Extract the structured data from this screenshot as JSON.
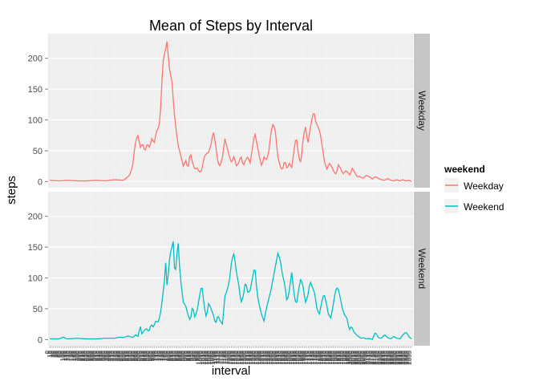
{
  "chart_data": {
    "type": "line",
    "title": "Mean of Steps by Interval",
    "xlabel": "interval",
    "ylabel": "steps",
    "ylim": [
      -10,
      240
    ],
    "yticks": [
      0,
      50,
      100,
      150,
      200
    ],
    "x": {
      "start": 0,
      "end": 2355,
      "step": 5,
      "note_label": "interval"
    },
    "panels": [
      "Weekday",
      "Weekend"
    ],
    "legend": {
      "title": "weekend",
      "position": "right",
      "entries": [
        "Weekday",
        "Weekend"
      ]
    },
    "grid": true,
    "colors": {
      "Weekday": "#F8766D",
      "Weekend": "#00BFC4",
      "panel_bg": "#ebebeb",
      "strip_bg": "#c6c6c6"
    },
    "series": [
      {
        "name": "Weekday",
        "profile": [
          [
            0,
            2
          ],
          [
            60,
            1
          ],
          [
            120,
            2
          ],
          [
            180,
            1
          ],
          [
            240,
            1
          ],
          [
            300,
            2
          ],
          [
            360,
            1
          ],
          [
            420,
            3
          ],
          [
            480,
            2
          ],
          [
            520,
            10
          ],
          [
            540,
            25
          ],
          [
            555,
            60
          ],
          [
            565,
            70
          ],
          [
            575,
            75
          ],
          [
            590,
            55
          ],
          [
            605,
            62
          ],
          [
            620,
            48
          ],
          [
            635,
            62
          ],
          [
            650,
            55
          ],
          [
            665,
            70
          ],
          [
            680,
            62
          ],
          [
            695,
            82
          ],
          [
            705,
            85
          ],
          [
            715,
            95
          ],
          [
            725,
            130
          ],
          [
            735,
            190
          ],
          [
            745,
            205
          ],
          [
            755,
            215
          ],
          [
            765,
            230
          ],
          [
            775,
            190
          ],
          [
            785,
            175
          ],
          [
            795,
            165
          ],
          [
            805,
            130
          ],
          [
            815,
            100
          ],
          [
            825,
            80
          ],
          [
            835,
            60
          ],
          [
            845,
            50
          ],
          [
            855,
            40
          ],
          [
            870,
            25
          ],
          [
            885,
            35
          ],
          [
            900,
            20
          ],
          [
            915,
            48
          ],
          [
            930,
            30
          ],
          [
            945,
            20
          ],
          [
            960,
            22
          ],
          [
            975,
            15
          ],
          [
            990,
            18
          ],
          [
            1005,
            40
          ],
          [
            1020,
            45
          ],
          [
            1035,
            48
          ],
          [
            1050,
            60
          ],
          [
            1065,
            82
          ],
          [
            1080,
            60
          ],
          [
            1095,
            30
          ],
          [
            1110,
            25
          ],
          [
            1125,
            40
          ],
          [
            1140,
            70
          ],
          [
            1155,
            55
          ],
          [
            1170,
            40
          ],
          [
            1185,
            30
          ],
          [
            1200,
            42
          ],
          [
            1215,
            25
          ],
          [
            1230,
            30
          ],
          [
            1245,
            42
          ],
          [
            1260,
            25
          ],
          [
            1275,
            35
          ],
          [
            1290,
            40
          ],
          [
            1305,
            30
          ],
          [
            1320,
            55
          ],
          [
            1335,
            80
          ],
          [
            1350,
            60
          ],
          [
            1365,
            40
          ],
          [
            1380,
            25
          ],
          [
            1395,
            40
          ],
          [
            1410,
            35
          ],
          [
            1425,
            45
          ],
          [
            1440,
            80
          ],
          [
            1455,
            95
          ],
          [
            1470,
            80
          ],
          [
            1485,
            40
          ],
          [
            1500,
            25
          ],
          [
            1515,
            18
          ],
          [
            1530,
            35
          ],
          [
            1545,
            20
          ],
          [
            1560,
            30
          ],
          [
            1575,
            22
          ],
          [
            1590,
            50
          ],
          [
            1605,
            75
          ],
          [
            1620,
            40
          ],
          [
            1635,
            30
          ],
          [
            1650,
            70
          ],
          [
            1665,
            90
          ],
          [
            1680,
            60
          ],
          [
            1695,
            85
          ],
          [
            1710,
            105
          ],
          [
            1720,
            115
          ],
          [
            1730,
            98
          ],
          [
            1745,
            90
          ],
          [
            1760,
            80
          ],
          [
            1775,
            55
          ],
          [
            1790,
            30
          ],
          [
            1805,
            20
          ],
          [
            1820,
            30
          ],
          [
            1835,
            25
          ],
          [
            1850,
            15
          ],
          [
            1865,
            12
          ],
          [
            1880,
            28
          ],
          [
            1895,
            20
          ],
          [
            1910,
            12
          ],
          [
            1925,
            18
          ],
          [
            1940,
            15
          ],
          [
            1955,
            10
          ],
          [
            1970,
            22
          ],
          [
            1985,
            15
          ],
          [
            2000,
            8
          ],
          [
            2020,
            8
          ],
          [
            2040,
            5
          ],
          [
            2060,
            10
          ],
          [
            2080,
            8
          ],
          [
            2100,
            4
          ],
          [
            2120,
            8
          ],
          [
            2140,
            5
          ],
          [
            2160,
            3
          ],
          [
            2180,
            2
          ],
          [
            2200,
            5
          ],
          [
            2220,
            2
          ],
          [
            2240,
            1
          ],
          [
            2260,
            3
          ],
          [
            2280,
            1
          ],
          [
            2300,
            3
          ],
          [
            2320,
            1
          ],
          [
            2340,
            2
          ],
          [
            2355,
            0
          ]
        ]
      },
      {
        "name": "Weekend",
        "profile": [
          [
            0,
            1
          ],
          [
            60,
            1
          ],
          [
            90,
            4
          ],
          [
            110,
            1
          ],
          [
            180,
            2
          ],
          [
            240,
            1
          ],
          [
            300,
            1
          ],
          [
            360,
            2
          ],
          [
            420,
            2
          ],
          [
            460,
            4
          ],
          [
            480,
            3
          ],
          [
            510,
            6
          ],
          [
            540,
            3
          ],
          [
            560,
            8
          ],
          [
            575,
            5
          ],
          [
            590,
            22
          ],
          [
            600,
            8
          ],
          [
            615,
            15
          ],
          [
            630,
            18
          ],
          [
            645,
            12
          ],
          [
            660,
            25
          ],
          [
            675,
            20
          ],
          [
            690,
            30
          ],
          [
            705,
            28
          ],
          [
            720,
            40
          ],
          [
            735,
            70
          ],
          [
            745,
            90
          ],
          [
            755,
            125
          ],
          [
            765,
            80
          ],
          [
            775,
            120
          ],
          [
            785,
            140
          ],
          [
            795,
            150
          ],
          [
            805,
            160
          ],
          [
            815,
            100
          ],
          [
            825,
            125
          ],
          [
            835,
            165
          ],
          [
            845,
            120
          ],
          [
            855,
            90
          ],
          [
            870,
            60
          ],
          [
            885,
            55
          ],
          [
            900,
            40
          ],
          [
            915,
            30
          ],
          [
            930,
            55
          ],
          [
            945,
            35
          ],
          [
            960,
            48
          ],
          [
            975,
            70
          ],
          [
            990,
            90
          ],
          [
            1005,
            55
          ],
          [
            1020,
            35
          ],
          [
            1035,
            60
          ],
          [
            1050,
            50
          ],
          [
            1065,
            40
          ],
          [
            1080,
            25
          ],
          [
            1095,
            40
          ],
          [
            1110,
            30
          ],
          [
            1125,
            25
          ],
          [
            1140,
            70
          ],
          [
            1155,
            80
          ],
          [
            1170,
            95
          ],
          [
            1185,
            130
          ],
          [
            1200,
            140
          ],
          [
            1215,
            110
          ],
          [
            1230,
            90
          ],
          [
            1245,
            60
          ],
          [
            1260,
            70
          ],
          [
            1275,
            95
          ],
          [
            1290,
            75
          ],
          [
            1305,
            80
          ],
          [
            1320,
            100
          ],
          [
            1335,
            120
          ],
          [
            1350,
            75
          ],
          [
            1365,
            55
          ],
          [
            1380,
            40
          ],
          [
            1395,
            30
          ],
          [
            1410,
            50
          ],
          [
            1425,
            65
          ],
          [
            1440,
            80
          ],
          [
            1455,
            100
          ],
          [
            1470,
            120
          ],
          [
            1485,
            140
          ],
          [
            1500,
            130
          ],
          [
            1515,
            105
          ],
          [
            1530,
            90
          ],
          [
            1545,
            60
          ],
          [
            1560,
            80
          ],
          [
            1575,
            110
          ],
          [
            1590,
            75
          ],
          [
            1605,
            55
          ],
          [
            1620,
            80
          ],
          [
            1635,
            100
          ],
          [
            1650,
            85
          ],
          [
            1665,
            60
          ],
          [
            1680,
            70
          ],
          [
            1695,
            95
          ],
          [
            1710,
            85
          ],
          [
            1725,
            75
          ],
          [
            1740,
            50
          ],
          [
            1755,
            40
          ],
          [
            1770,
            60
          ],
          [
            1785,
            75
          ],
          [
            1800,
            60
          ],
          [
            1815,
            40
          ],
          [
            1830,
            35
          ],
          [
            1845,
            55
          ],
          [
            1860,
            80
          ],
          [
            1875,
            85
          ],
          [
            1890,
            70
          ],
          [
            1905,
            50
          ],
          [
            1920,
            40
          ],
          [
            1935,
            35
          ],
          [
            1950,
            15
          ],
          [
            1965,
            22
          ],
          [
            1980,
            12
          ],
          [
            1995,
            8
          ],
          [
            2010,
            5
          ],
          [
            2025,
            2
          ],
          [
            2040,
            3
          ],
          [
            2060,
            1
          ],
          [
            2080,
            2
          ],
          [
            2100,
            0
          ],
          [
            2120,
            12
          ],
          [
            2140,
            3
          ],
          [
            2160,
            2
          ],
          [
            2180,
            8
          ],
          [
            2200,
            3
          ],
          [
            2220,
            1
          ],
          [
            2240,
            5
          ],
          [
            2260,
            2
          ],
          [
            2280,
            1
          ],
          [
            2300,
            8
          ],
          [
            2320,
            12
          ],
          [
            2340,
            4
          ],
          [
            2355,
            1
          ]
        ]
      }
    ]
  }
}
